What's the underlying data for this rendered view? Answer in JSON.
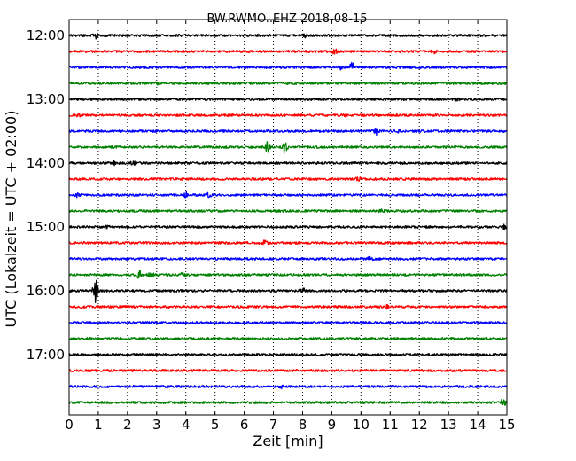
{
  "chart_data": {
    "type": "line",
    "title": "BW.RWMO..EHZ 2018-08-15",
    "xlabel": "Zeit  [min]",
    "ylabel": "UTC (Lokalzeit = UTC + 02:00)",
    "xlim": [
      0,
      15
    ],
    "xticks": [
      "0",
      "1",
      "2",
      "3",
      "4",
      "5",
      "6",
      "7",
      "8",
      "9",
      "10",
      "11",
      "12",
      "13",
      "14",
      "15"
    ],
    "yticks": [
      "12:00",
      "13:00",
      "14:00",
      "15:00",
      "16:00",
      "17:00"
    ],
    "grid": "vertical dotted",
    "trace_colors": [
      "#000000",
      "#ff0000",
      "#0000ff",
      "#008000"
    ],
    "series": [
      {
        "start": "12:00",
        "color": "#000000",
        "events": [
          [
            0.9,
            3
          ],
          [
            8.1,
            1.5
          ]
        ]
      },
      {
        "start": "12:15",
        "color": "#ff0000",
        "events": [
          [
            9.1,
            2.5
          ],
          [
            12.5,
            1.5
          ]
        ]
      },
      {
        "start": "12:30",
        "color": "#0000ff",
        "events": [
          [
            9.7,
            5
          ],
          [
            9.3,
            2
          ]
        ]
      },
      {
        "start": "12:45",
        "color": "#008000",
        "events": [
          [
            3.0,
            1.5
          ]
        ]
      },
      {
        "start": "13:00",
        "color": "#000000",
        "events": [
          [
            13.3,
            1.5
          ]
        ]
      },
      {
        "start": "13:15",
        "color": "#ff0000",
        "events": [
          [
            0.3,
            1.5
          ],
          [
            9.5,
            1.5
          ]
        ]
      },
      {
        "start": "13:30",
        "color": "#0000ff",
        "events": [
          [
            10.5,
            4
          ],
          [
            11.3,
            1.5
          ]
        ]
      },
      {
        "start": "13:45",
        "color": "#008000",
        "events": [
          [
            6.8,
            7
          ],
          [
            7.4,
            7
          ]
        ]
      },
      {
        "start": "14:00",
        "color": "#000000",
        "events": [
          [
            1.5,
            3
          ],
          [
            2.2,
            2
          ]
        ]
      },
      {
        "start": "14:15",
        "color": "#ff0000",
        "events": [
          [
            9.9,
            2
          ]
        ]
      },
      {
        "start": "14:30",
        "color": "#0000ff",
        "events": [
          [
            4.0,
            3
          ],
          [
            4.8,
            2.5
          ],
          [
            0.3,
            2
          ]
        ]
      },
      {
        "start": "14:45",
        "color": "#008000",
        "events": [
          [
            10.7,
            1.5
          ]
        ]
      },
      {
        "start": "15:00",
        "color": "#000000",
        "events": [
          [
            1.3,
            2.5
          ],
          [
            14.9,
            2
          ]
        ]
      },
      {
        "start": "15:15",
        "color": "#ff0000",
        "events": [
          [
            6.7,
            2
          ]
        ]
      },
      {
        "start": "15:30",
        "color": "#0000ff",
        "events": [
          [
            10.3,
            1.5
          ]
        ]
      },
      {
        "start": "15:45",
        "color": "#008000",
        "events": [
          [
            2.4,
            5
          ],
          [
            2.8,
            4
          ],
          [
            3.9,
            2
          ]
        ]
      },
      {
        "start": "16:00",
        "color": "#000000",
        "events": [
          [
            0.9,
            13
          ],
          [
            8.0,
            3
          ]
        ]
      },
      {
        "start": "16:15",
        "color": "#ff0000",
        "events": [
          [
            10.9,
            1.5
          ]
        ]
      },
      {
        "start": "16:30",
        "color": "#0000ff",
        "events": []
      },
      {
        "start": "16:45",
        "color": "#008000",
        "events": []
      },
      {
        "start": "17:00",
        "color": "#000000",
        "events": []
      },
      {
        "start": "17:15",
        "color": "#ff0000",
        "events": []
      },
      {
        "start": "17:30",
        "color": "#0000ff",
        "events": [
          [
            7.3,
            1.5
          ]
        ]
      },
      {
        "start": "17:45",
        "color": "#008000",
        "events": [
          [
            14.9,
            7
          ]
        ]
      }
    ]
  }
}
